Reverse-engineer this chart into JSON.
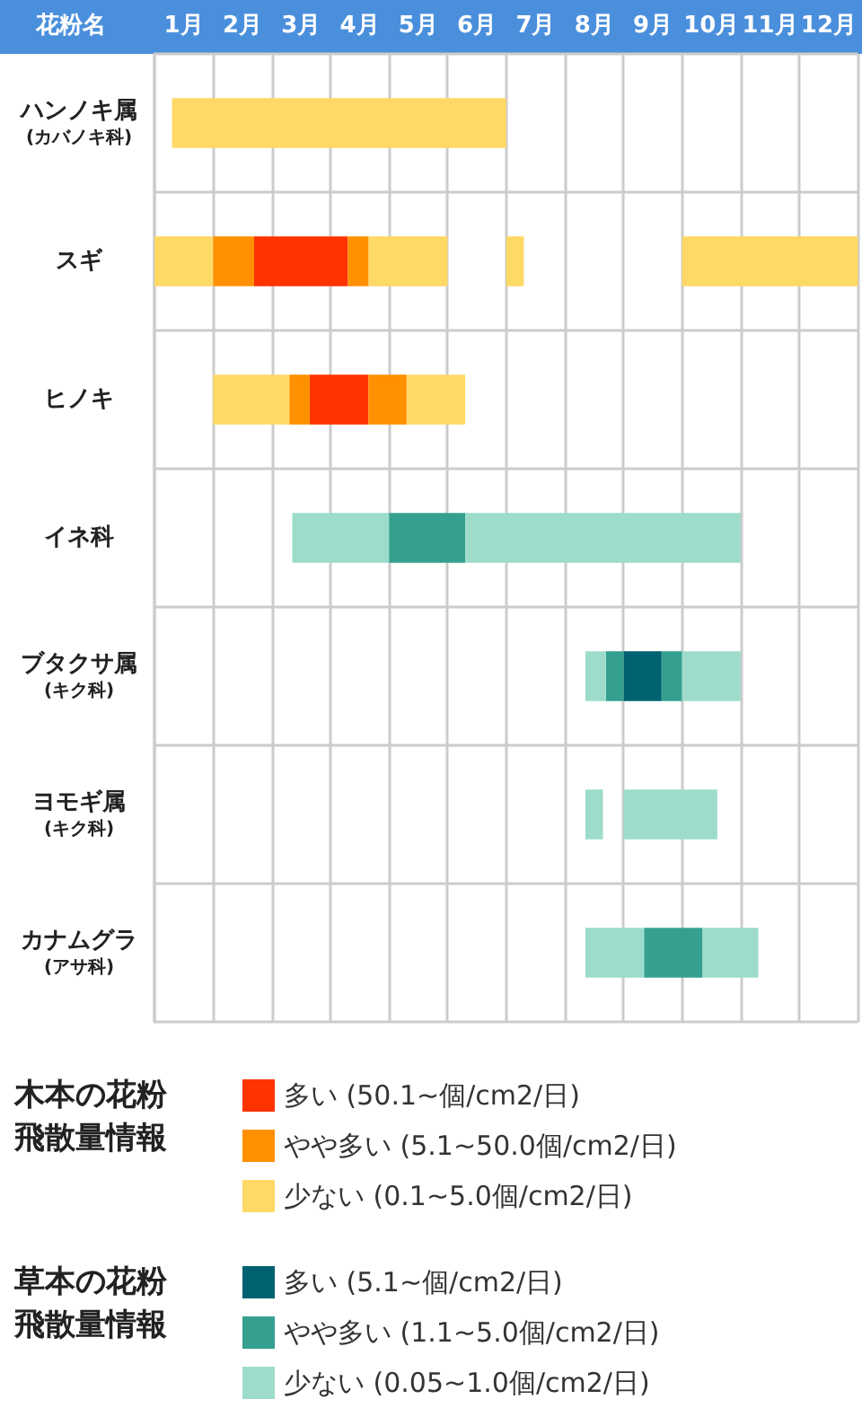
{
  "chart_data": {
    "type": "bar",
    "orientation": "horizontal",
    "ylabel": "花粉名",
    "categories": [
      "ハンノキ属\n(カバノキ科)",
      "スギ",
      "ヒノキ",
      "イネ科",
      "ブタクサ属\n(キク科)",
      "ヨモギ属\n(キク科)",
      "カナムグラ\n(アサ科)"
    ],
    "xlim": [
      0,
      12
    ],
    "xticks": [
      {
        "value": 0,
        "label": null
      },
      {
        "value": 0.5,
        "label": "1月"
      },
      {
        "value": 1,
        "label": null
      },
      {
        "value": 1.5,
        "label": "2月"
      },
      {
        "value": 2,
        "label": null
      },
      {
        "value": 2.5,
        "label": "3月"
      },
      {
        "value": 3,
        "label": null
      },
      {
        "value": 3.5,
        "label": "4月"
      },
      {
        "value": 4,
        "label": null
      },
      {
        "value": 4.5,
        "label": "5月"
      },
      {
        "value": 5,
        "label": null
      },
      {
        "value": 5.5,
        "label": "6月"
      },
      {
        "value": 6,
        "label": null
      },
      {
        "value": 6.5,
        "label": "7月"
      },
      {
        "value": 7,
        "label": null
      },
      {
        "value": 7.5,
        "label": "8月"
      },
      {
        "value": 8,
        "label": null
      },
      {
        "value": 8.5,
        "label": "9月"
      },
      {
        "value": 9,
        "label": null
      },
      {
        "value": 9.5,
        "label": "10月"
      },
      {
        "value": 10,
        "label": null
      },
      {
        "value": 10.5,
        "label": "11月"
      },
      {
        "value": 11,
        "label": null
      },
      {
        "value": 11.5,
        "label": "12月"
      },
      {
        "value": 12,
        "label": null
      }
    ],
    "series": [
      {
        "name": "多い (50.1~個/cm2/日)",
        "color": "#ff3300",
        "base": [
          null,
          1.7,
          2.65,
          null,
          null,
          null,
          null
        ],
        "values": [
          null,
          1.6,
          1.0,
          null,
          null,
          null,
          null
        ]
      },
      {
        "name": "やや多い (5.1~50.0個/cm2/日)",
        "color": "#ff9000",
        "base": [
          null,
          1,
          2.3,
          null,
          null,
          null,
          null
        ],
        "values": [
          null,
          0.7,
          0.35,
          null,
          null,
          null,
          null
        ]
      },
      {
        "name": "少ない (0.1~5.0個/cm2/日)",
        "color": "#ffd966",
        "base": [
          0.3,
          0,
          1,
          null,
          null,
          null,
          null
        ],
        "values": [
          5.7,
          1,
          1.3,
          null,
          null,
          null,
          null
        ]
      },
      {
        "name": "多い (5.1~個/cm2/日)",
        "color": "#006170",
        "base": [
          null,
          null,
          null,
          null,
          8.0,
          null,
          null
        ],
        "values": [
          null,
          null,
          null,
          null,
          0.65,
          null,
          null
        ]
      },
      {
        "name": "やや多い (1.1~5.0個/cm2/日)",
        "color": "#36a08f",
        "base": [
          null,
          null,
          null,
          4.0,
          7.7,
          null,
          8.35
        ],
        "values": [
          null,
          null,
          null,
          1.3,
          0.3,
          null,
          1.0
        ]
      },
      {
        "name": "少ない (0.05~1.0個/cm2/日)",
        "color": "#9ddcca",
        "base": [
          null,
          null,
          null,
          2.35,
          7.35,
          7.35,
          7.35
        ],
        "values": [
          null,
          null,
          null,
          1.65,
          0.35,
          0.3,
          1.0
        ]
      },
      {
        "color": "#ffd966",
        "base": [
          null,
          3.65,
          4.3,
          null,
          null,
          null,
          null
        ],
        "values": [
          null,
          1.35,
          1.0,
          null,
          null,
          null,
          null
        ]
      },
      {
        "color": "#ffd966",
        "base": [
          null,
          6.0,
          null,
          null,
          null,
          null,
          null
        ],
        "values": [
          null,
          0.3,
          null,
          null,
          null,
          null,
          null
        ]
      },
      {
        "color": "#ffd966",
        "base": [
          null,
          9,
          null,
          null,
          null,
          null,
          null
        ],
        "values": [
          null,
          3,
          null,
          null,
          null,
          null,
          null
        ]
      },
      {
        "color": "#ff9000",
        "base": [
          null,
          3.3,
          3.65,
          null,
          null,
          null,
          null
        ],
        "values": [
          null,
          0.35,
          0.65,
          null,
          null,
          null,
          null
        ]
      },
      {
        "color": "#36a08f",
        "base": [
          null,
          null,
          null,
          null,
          8.65,
          null,
          null
        ],
        "values": [
          null,
          null,
          null,
          null,
          0.35,
          null,
          null
        ]
      },
      {
        "color": "#9ddcca",
        "base": [
          null,
          null,
          null,
          5.3,
          9.0,
          8.0,
          9.35
        ],
        "values": [
          null,
          null,
          null,
          4.7,
          1.0,
          1.6,
          0.95
        ]
      }
    ],
    "annotations": [
      "木本の花粉飛散量情報",
      "草本の花粉飛散量情報"
    ],
    "grid": true,
    "legend": "bottom"
  }
}
